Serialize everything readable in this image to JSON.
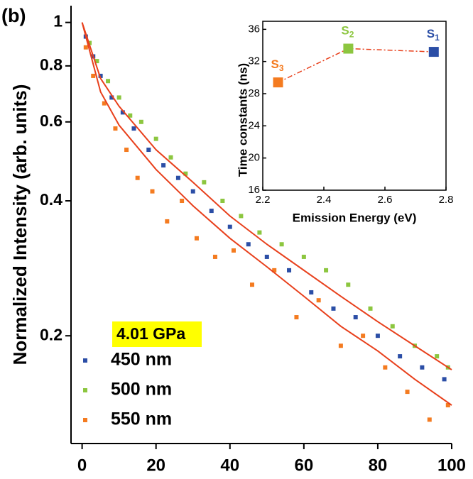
{
  "chart_data": [
    {
      "type": "scatter",
      "panel_label": "(b)",
      "ylabel": "Normalized Intensity (arb. units)",
      "xlim": [
        -3,
        100
      ],
      "xticks": [
        0,
        20,
        40,
        60,
        80,
        100
      ],
      "ylim": [
        0.115,
        1.09
      ],
      "yticks": [
        0.2,
        0.4,
        0.6,
        0.8,
        1
      ],
      "log_y": true,
      "legend_title": "4.01 GPa",
      "legend_position": "lower left",
      "series": [
        {
          "name": "450 nm",
          "color": "#2b4ea6",
          "x": [
            1,
            3,
            5,
            8,
            11,
            14,
            18,
            22,
            26,
            30,
            35,
            40,
            45,
            50,
            56,
            62,
            68,
            74,
            80,
            86,
            92,
            98
          ],
          "values": [
            0.93,
            0.84,
            0.76,
            0.68,
            0.63,
            0.58,
            0.52,
            0.48,
            0.45,
            0.42,
            0.38,
            0.35,
            0.32,
            0.3,
            0.28,
            0.25,
            0.23,
            0.22,
            0.2,
            0.18,
            0.17,
            0.16
          ]
        },
        {
          "name": "500 nm",
          "color": "#8cc63f",
          "x": [
            2,
            4,
            7,
            10,
            13,
            16,
            20,
            24,
            28,
            33,
            38,
            43,
            48,
            54,
            60,
            66,
            72,
            78,
            84,
            90,
            96,
            99
          ],
          "values": [
            0.9,
            0.82,
            0.74,
            0.68,
            0.62,
            0.6,
            0.55,
            0.5,
            0.46,
            0.44,
            0.4,
            0.37,
            0.34,
            0.32,
            0.3,
            0.28,
            0.26,
            0.23,
            0.21,
            0.19,
            0.18,
            0.17
          ]
        },
        {
          "name": "550 nm",
          "color": "#f47b20",
          "x": [
            1,
            3,
            6,
            9,
            12,
            15,
            19,
            23,
            27,
            31,
            36,
            41,
            46,
            52,
            58,
            64,
            70,
            76,
            82,
            88,
            94,
            99
          ],
          "values": [
            0.88,
            0.76,
            0.66,
            0.58,
            0.52,
            0.45,
            0.42,
            0.36,
            0.4,
            0.33,
            0.3,
            0.31,
            0.26,
            0.28,
            0.22,
            0.24,
            0.19,
            0.2,
            0.17,
            0.15,
            0.13,
            0.14
          ]
        }
      ],
      "fits": [
        {
          "color": "#e8401c",
          "x": [
            0,
            5,
            10,
            20,
            30,
            40,
            50,
            60,
            70,
            80,
            90,
            100
          ],
          "values": [
            1,
            0.75,
            0.65,
            0.52,
            0.44,
            0.37,
            0.32,
            0.28,
            0.245,
            0.215,
            0.19,
            0.168
          ]
        },
        {
          "color": "#e8401c",
          "x": [
            0,
            5,
            10,
            20,
            30,
            40,
            50,
            60,
            70,
            80,
            90,
            100
          ],
          "values": [
            1,
            0.7,
            0.59,
            0.47,
            0.39,
            0.33,
            0.285,
            0.245,
            0.21,
            0.185,
            0.16,
            0.14
          ]
        }
      ]
    },
    {
      "type": "line",
      "xlabel": "Emission Energy (eV)",
      "ylabel": "Time constants (ns)",
      "xlim": [
        2.2,
        2.8
      ],
      "xticks": [
        2.2,
        2.4,
        2.6,
        2.8
      ],
      "ylim": [
        16,
        37
      ],
      "yticks": [
        16,
        20,
        24,
        28,
        32,
        36
      ],
      "line_color": "#e8401c",
      "x": [
        2.25,
        2.48,
        2.76
      ],
      "values": [
        29.4,
        33.6,
        33.2
      ],
      "colors": [
        "#f47b20",
        "#8cc63f",
        "#2b4ea6"
      ],
      "point_labels": [
        "S",
        "S",
        "S"
      ],
      "point_subscripts": [
        "3",
        "2",
        "1"
      ]
    }
  ]
}
